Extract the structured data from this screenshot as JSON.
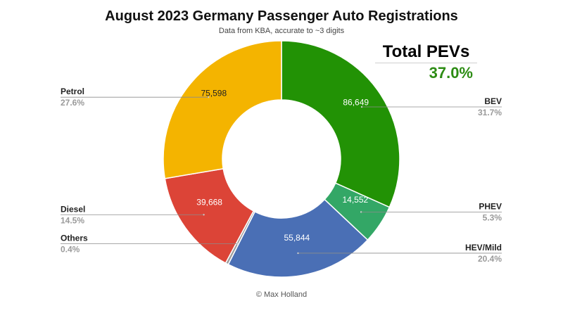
{
  "chart_data": {
    "type": "pie",
    "variant": "donut",
    "title": "August 2023 Germany Passenger Auto Registrations",
    "subtitle": "Data from KBA, accurate to ~3 digits",
    "slices": [
      {
        "name": "BEV",
        "value": 86649,
        "value_label": "86,649",
        "percent": "31.7%",
        "color": "#229205",
        "label_side": "right"
      },
      {
        "name": "PHEV",
        "value": 14552,
        "value_label": "14,552",
        "percent": "5.3%",
        "color": "#33a766",
        "label_side": "right"
      },
      {
        "name": "HEV/Mild",
        "value": 55844,
        "value_label": "55,844",
        "percent": "20.4%",
        "color": "#4a6fb5",
        "label_side": "right"
      },
      {
        "name": "Others",
        "value": 1100,
        "value_label": "",
        "percent": "0.4%",
        "color": "#9e9e9e",
        "label_side": "left"
      },
      {
        "name": "Diesel",
        "value": 39668,
        "value_label": "39,668",
        "percent": "14.5%",
        "color": "#dc4437",
        "label_side": "left"
      },
      {
        "name": "Petrol",
        "value": 75598,
        "value_label": "75,598",
        "percent": "27.6%",
        "color": "#f4b400",
        "label_side": "left"
      }
    ]
  },
  "callout": {
    "label": "Total PEVs",
    "value": "37.0%"
  },
  "credit": "© Max Holland"
}
